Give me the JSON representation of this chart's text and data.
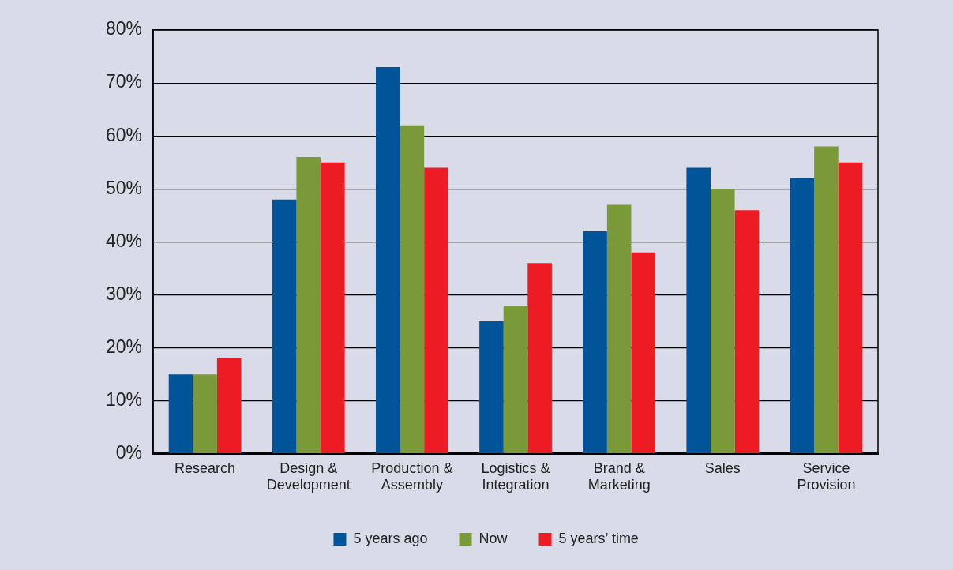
{
  "chart_data": {
    "type": "bar",
    "categories": [
      "Research",
      "Design & Development",
      "Production & Assembly",
      "Logistics & Integration",
      "Brand & Marketing",
      "Sales",
      "Service Provision"
    ],
    "series": [
      {
        "name": "5 years ago",
        "color": "#00559a",
        "values": [
          15,
          48,
          73,
          25,
          42,
          54,
          52
        ]
      },
      {
        "name": "Now",
        "color": "#7a9a3a",
        "values": [
          15,
          56,
          62,
          28,
          47,
          50,
          58
        ]
      },
      {
        "name": "5 years’ time",
        "color": "#ed1c24",
        "values": [
          18,
          55,
          54,
          36,
          38,
          46,
          55
        ]
      }
    ],
    "ylim": [
      0,
      80
    ],
    "yticks": [
      {
        "value": 0,
        "label": "0%"
      },
      {
        "value": 10,
        "label": "10%"
      },
      {
        "value": 20,
        "label": "20%"
      },
      {
        "value": 30,
        "label": "30%"
      },
      {
        "value": 40,
        "label": "40%"
      },
      {
        "value": 50,
        "label": "50%"
      },
      {
        "value": 60,
        "label": "60%"
      },
      {
        "value": 70,
        "label": "70%"
      },
      {
        "value": 80,
        "label": "80%"
      }
    ],
    "grid": "y",
    "legend": "bottom"
  }
}
